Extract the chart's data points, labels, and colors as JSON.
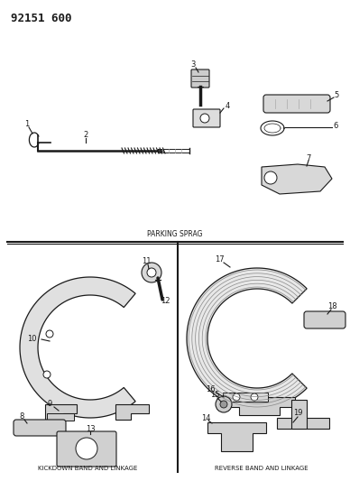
{
  "title": "92151 600",
  "bg_color": "#ffffff",
  "line_color": "#1a1a1a",
  "text_color": "#1a1a1a",
  "section1_label": "PARKING SPRAG",
  "section2_label": "KICKDOWN BAND AND LINKAGE",
  "section3_label": "REVERSE BAND AND LINKAGE",
  "fig_width": 3.88,
  "fig_height": 5.33,
  "dpi": 100
}
